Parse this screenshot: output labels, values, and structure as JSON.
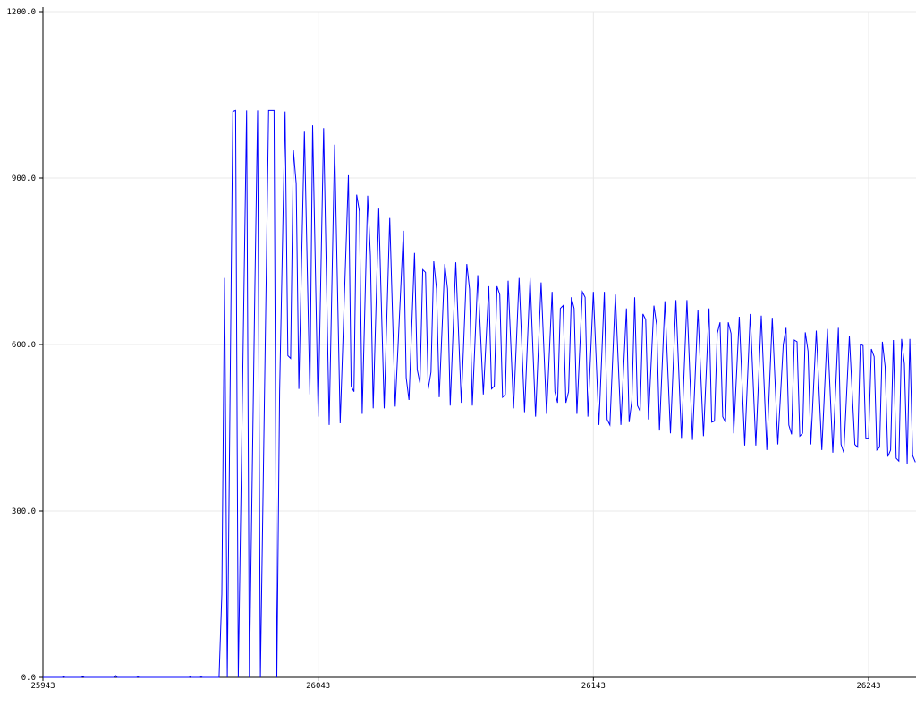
{
  "chart_data": {
    "type": "line",
    "title": "",
    "xlabel": "",
    "ylabel": "",
    "xlim": [
      25943,
      26260
    ],
    "ylim": [
      0,
      1200
    ],
    "grid": true,
    "x_ticks": [
      "25943",
      "26043",
      "26143",
      "26243"
    ],
    "y_ticks": [
      "0.0",
      "300.0",
      "600.0",
      "900.0",
      "1200.0"
    ],
    "series": [
      {
        "color": "#0000ff",
        "points": [
          [
            25943,
            0
          ],
          [
            25950,
            0
          ],
          [
            25950.5,
            2
          ],
          [
            25951,
            0
          ],
          [
            25957,
            0
          ],
          [
            25957.5,
            2
          ],
          [
            25958,
            0
          ],
          [
            25969,
            0
          ],
          [
            25969.5,
            3
          ],
          [
            25970,
            0
          ],
          [
            25977,
            0
          ],
          [
            25977.5,
            1
          ],
          [
            25978,
            0
          ],
          [
            25996,
            0
          ],
          [
            25996.5,
            1
          ],
          [
            25997,
            0
          ],
          [
            26000,
            0
          ],
          [
            26000.5,
            1
          ],
          [
            26001,
            0
          ],
          [
            26007,
            0
          ],
          [
            26008,
            150
          ],
          [
            26009,
            720
          ],
          [
            26010,
            0
          ],
          [
            26012,
            1020
          ],
          [
            26013,
            1022
          ],
          [
            26014,
            0
          ],
          [
            26017,
            1022
          ],
          [
            26018,
            0
          ],
          [
            26020,
            700
          ],
          [
            26021,
            1022
          ],
          [
            26022,
            0
          ],
          [
            26025,
            1022
          ],
          [
            26027,
            1022
          ],
          [
            26028,
            0
          ],
          [
            26029,
            515
          ],
          [
            26031,
            1020
          ],
          [
            26032,
            580
          ],
          [
            26033,
            575
          ],
          [
            26034,
            950
          ],
          [
            26035,
            890
          ],
          [
            26036,
            520
          ],
          [
            26038,
            985
          ],
          [
            26040,
            510
          ],
          [
            26041,
            995
          ],
          [
            26043,
            470
          ],
          [
            26045,
            990
          ],
          [
            26047,
            455
          ],
          [
            26049,
            960
          ],
          [
            26051,
            458
          ],
          [
            26054,
            905
          ],
          [
            26055,
            525
          ],
          [
            26056,
            515
          ],
          [
            26057,
            870
          ],
          [
            26058,
            840
          ],
          [
            26059,
            475
          ],
          [
            26061,
            868
          ],
          [
            26062,
            760
          ],
          [
            26063,
            485
          ],
          [
            26065,
            845
          ],
          [
            26067,
            485
          ],
          [
            26069,
            828
          ],
          [
            26071,
            488
          ],
          [
            26074,
            805
          ],
          [
            26075,
            540
          ],
          [
            26076,
            500
          ],
          [
            26078,
            765
          ],
          [
            26079,
            555
          ],
          [
            26080,
            530
          ],
          [
            26081,
            735
          ],
          [
            26082,
            730
          ],
          [
            26083,
            520
          ],
          [
            26084,
            550
          ],
          [
            26085,
            750
          ],
          [
            26086,
            700
          ],
          [
            26087,
            505
          ],
          [
            26089,
            745
          ],
          [
            26090,
            700
          ],
          [
            26091,
            490
          ],
          [
            26093,
            748
          ],
          [
            26095,
            495
          ],
          [
            26097,
            745
          ],
          [
            26098,
            700
          ],
          [
            26099,
            490
          ],
          [
            26101,
            725
          ],
          [
            26103,
            510
          ],
          [
            26105,
            705
          ],
          [
            26106,
            520
          ],
          [
            26107,
            525
          ],
          [
            26108,
            705
          ],
          [
            26109,
            690
          ],
          [
            26110,
            505
          ],
          [
            26111,
            510
          ],
          [
            26112,
            715
          ],
          [
            26114,
            485
          ],
          [
            26116,
            720
          ],
          [
            26118,
            478
          ],
          [
            26120,
            720
          ],
          [
            26122,
            470
          ],
          [
            26124,
            712
          ],
          [
            26126,
            475
          ],
          [
            26128,
            695
          ],
          [
            26129,
            515
          ],
          [
            26130,
            495
          ],
          [
            26131,
            665
          ],
          [
            26132,
            670
          ],
          [
            26133,
            495
          ],
          [
            26134,
            515
          ],
          [
            26135,
            685
          ],
          [
            26136,
            665
          ],
          [
            26137,
            475
          ],
          [
            26139,
            695
          ],
          [
            26140,
            685
          ],
          [
            26141,
            470
          ],
          [
            26143,
            695
          ],
          [
            26145,
            455
          ],
          [
            26147,
            695
          ],
          [
            26148,
            465
          ],
          [
            26149,
            455
          ],
          [
            26151,
            690
          ],
          [
            26153,
            455
          ],
          [
            26155,
            665
          ],
          [
            26156,
            460
          ],
          [
            26157,
            500
          ],
          [
            26158,
            685
          ],
          [
            26159,
            490
          ],
          [
            26160,
            480
          ],
          [
            26161,
            655
          ],
          [
            26162,
            645
          ],
          [
            26163,
            465
          ],
          [
            26165,
            670
          ],
          [
            26166,
            635
          ],
          [
            26167,
            445
          ],
          [
            26169,
            678
          ],
          [
            26171,
            440
          ],
          [
            26173,
            680
          ],
          [
            26175,
            430
          ],
          [
            26177,
            680
          ],
          [
            26179,
            428
          ],
          [
            26181,
            662
          ],
          [
            26183,
            435
          ],
          [
            26185,
            665
          ],
          [
            26186,
            460
          ],
          [
            26187,
            462
          ],
          [
            26188,
            620
          ],
          [
            26189,
            640
          ],
          [
            26190,
            470
          ],
          [
            26191,
            460
          ],
          [
            26192,
            640
          ],
          [
            26193,
            620
          ],
          [
            26194,
            440
          ],
          [
            26196,
            650
          ],
          [
            26198,
            418
          ],
          [
            26200,
            655
          ],
          [
            26202,
            418
          ],
          [
            26204,
            652
          ],
          [
            26206,
            410
          ],
          [
            26208,
            648
          ],
          [
            26210,
            420
          ],
          [
            26212,
            600
          ],
          [
            26213,
            630
          ],
          [
            26214,
            455
          ],
          [
            26215,
            438
          ],
          [
            26216,
            608
          ],
          [
            26217,
            605
          ],
          [
            26218,
            435
          ],
          [
            26219,
            440
          ],
          [
            26220,
            622
          ],
          [
            26221,
            588
          ],
          [
            26222,
            420
          ],
          [
            26224,
            625
          ],
          [
            26226,
            410
          ],
          [
            26228,
            628
          ],
          [
            26230,
            405
          ],
          [
            26232,
            630
          ],
          [
            26233,
            420
          ],
          [
            26234,
            405
          ],
          [
            26236,
            615
          ],
          [
            26238,
            420
          ],
          [
            26239,
            415
          ],
          [
            26240,
            600
          ],
          [
            26241,
            598
          ],
          [
            26242,
            430
          ],
          [
            26243,
            430
          ],
          [
            26244,
            592
          ],
          [
            26245,
            578
          ],
          [
            26246,
            410
          ],
          [
            26247,
            415
          ],
          [
            26248,
            605
          ],
          [
            26249,
            560
          ],
          [
            26250,
            398
          ],
          [
            26251,
            410
          ],
          [
            26252,
            608
          ],
          [
            26253,
            395
          ],
          [
            26254,
            390
          ],
          [
            26255,
            610
          ],
          [
            26256,
            565
          ],
          [
            26257,
            385
          ],
          [
            26258,
            610
          ],
          [
            26259,
            400
          ],
          [
            26260,
            388
          ],
          [
            26261,
            545
          ],
          [
            26262,
            590
          ],
          [
            26263,
            405
          ],
          [
            26264,
            565
          ],
          [
            26265,
            572
          ],
          [
            26266,
            402
          ],
          [
            26267,
            410
          ]
        ]
      }
    ]
  }
}
